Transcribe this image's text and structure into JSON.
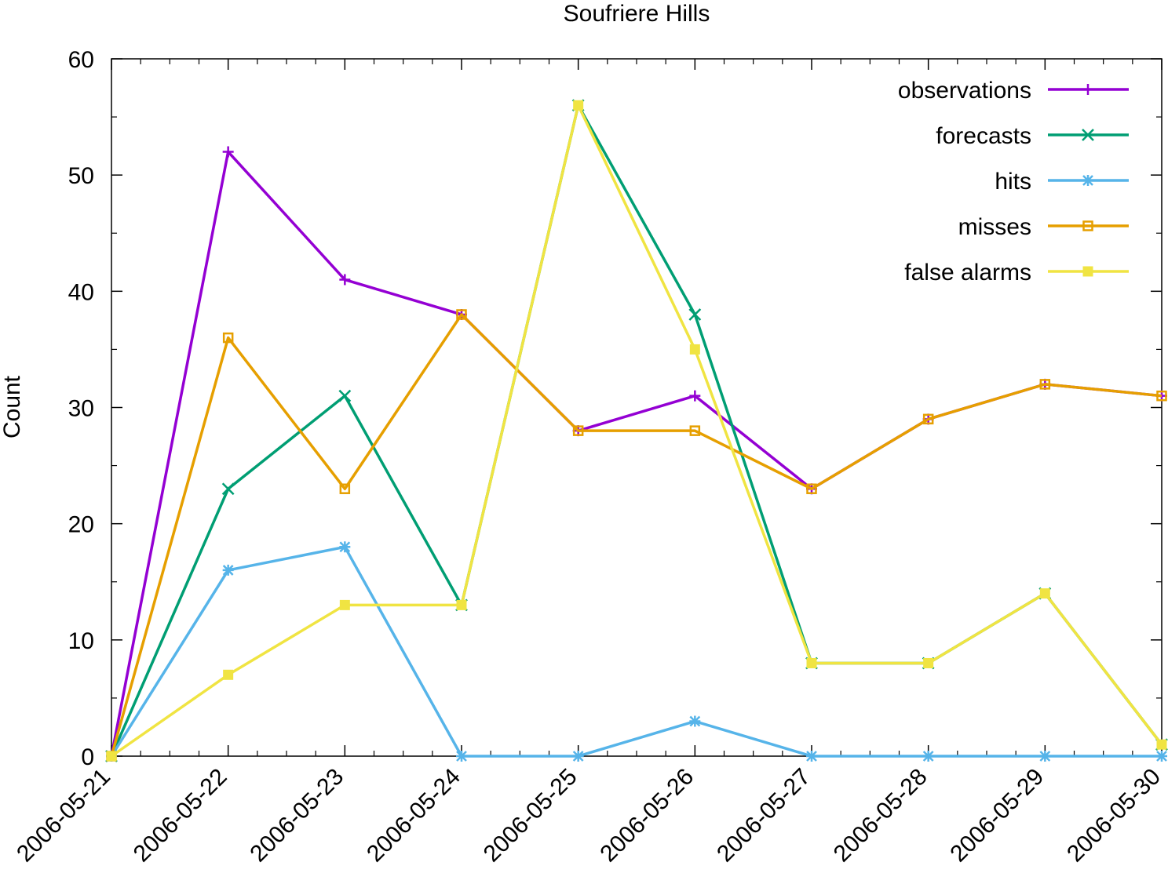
{
  "chart_data": {
    "type": "line",
    "title": "Soufriere Hills",
    "xlabel": "",
    "ylabel": "Count",
    "ylim": [
      0,
      60
    ],
    "y_ticks": [
      "0",
      "10",
      "20",
      "30",
      "40",
      "50",
      "60"
    ],
    "categories": [
      "2006-05-21",
      "2006-05-22",
      "2006-05-23",
      "2006-05-24",
      "2006-05-25",
      "2006-05-26",
      "2006-05-27",
      "2006-05-28",
      "2006-05-29",
      "2006-05-30"
    ],
    "legend_position": "top-right",
    "grid": false,
    "series": [
      {
        "name": "observations",
        "color": "#9400d3",
        "marker": "plus",
        "values": [
          0,
          52,
          41,
          38,
          28,
          31,
          23,
          29,
          32,
          31
        ]
      },
      {
        "name": "forecasts",
        "color": "#009e73",
        "marker": "cross",
        "values": [
          0,
          23,
          31,
          13,
          56,
          38,
          8,
          8,
          14,
          1
        ]
      },
      {
        "name": "hits",
        "color": "#56b4e9",
        "marker": "star",
        "values": [
          0,
          16,
          18,
          0,
          0,
          3,
          0,
          0,
          0,
          0
        ]
      },
      {
        "name": "misses",
        "color": "#e69f00",
        "marker": "open-square",
        "values": [
          0,
          36,
          23,
          38,
          28,
          28,
          23,
          29,
          32,
          31
        ]
      },
      {
        "name": "false alarms",
        "color": "#f0e442",
        "marker": "filled-square",
        "values": [
          0,
          7,
          13,
          13,
          56,
          35,
          8,
          8,
          14,
          1
        ]
      }
    ]
  }
}
